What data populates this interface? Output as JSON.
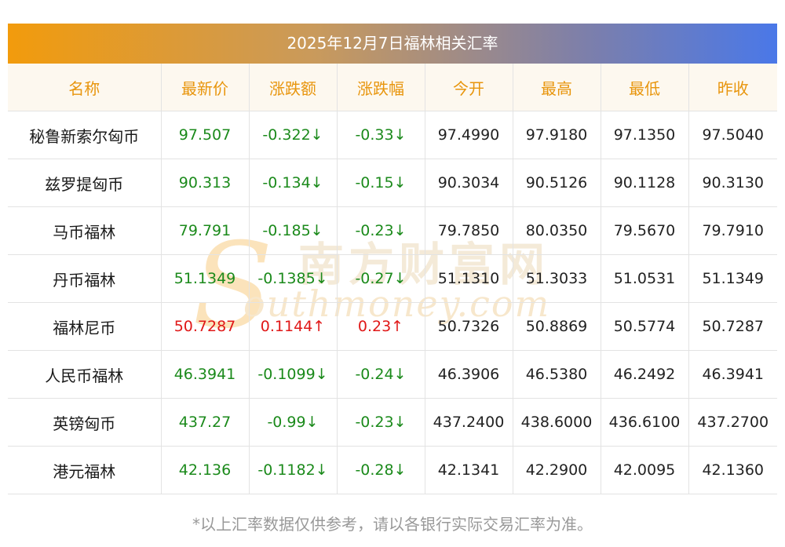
{
  "title": "2025年12月7日福林相关汇率",
  "headers": [
    "名称",
    "最新价",
    "涨跌额",
    "涨跌幅",
    "今开",
    "最高",
    "最低",
    "昨收"
  ],
  "rows": [
    {
      "name": "秘鲁新索尔匈币",
      "latest": "97.507",
      "change": "-0.322↓",
      "pct": "-0.33↓",
      "open": "97.4990",
      "high": "97.9180",
      "low": "97.1350",
      "prev": "97.5040",
      "dir": "down"
    },
    {
      "name": "兹罗提匈币",
      "latest": "90.313",
      "change": "-0.134↓",
      "pct": "-0.15↓",
      "open": "90.3034",
      "high": "90.5126",
      "low": "90.1128",
      "prev": "90.3130",
      "dir": "down"
    },
    {
      "name": "马币福林",
      "latest": "79.791",
      "change": "-0.185↓",
      "pct": "-0.23↓",
      "open": "79.7850",
      "high": "80.0350",
      "low": "79.5670",
      "prev": "79.7910",
      "dir": "down"
    },
    {
      "name": "丹币福林",
      "latest": "51.1349",
      "change": "-0.1385↓",
      "pct": "-0.27↓",
      "open": "51.1310",
      "high": "51.3033",
      "low": "51.0531",
      "prev": "51.1349",
      "dir": "down"
    },
    {
      "name": "福林尼币",
      "latest": "50.7287",
      "change": "0.1144↑",
      "pct": "0.23↑",
      "open": "50.7326",
      "high": "50.8869",
      "low": "50.5774",
      "prev": "50.7287",
      "dir": "up"
    },
    {
      "name": "人民币福林",
      "latest": "46.3941",
      "change": "-0.1099↓",
      "pct": "-0.24↓",
      "open": "46.3906",
      "high": "46.5380",
      "low": "46.2492",
      "prev": "46.3941",
      "dir": "down"
    },
    {
      "name": "英镑匈币",
      "latest": "437.27",
      "change": "-0.99↓",
      "pct": "-0.23↓",
      "open": "437.2400",
      "high": "438.6000",
      "low": "436.6100",
      "prev": "437.2700",
      "dir": "down"
    },
    {
      "name": "港元福林",
      "latest": "42.136",
      "change": "-0.1182↓",
      "pct": "-0.28↓",
      "open": "42.1341",
      "high": "42.2900",
      "low": "42.0095",
      "prev": "42.1360",
      "dir": "down"
    }
  ],
  "watermark": {
    "cn": "南方财富网",
    "en": "outhmoney.com",
    "s": "S"
  },
  "colors": {
    "up": "#e01818",
    "down": "#1b8a1b",
    "header_text": "#e8950c"
  },
  "footnote": "*以上汇率数据仅供参考，请以各银行实际交易汇率为准。"
}
